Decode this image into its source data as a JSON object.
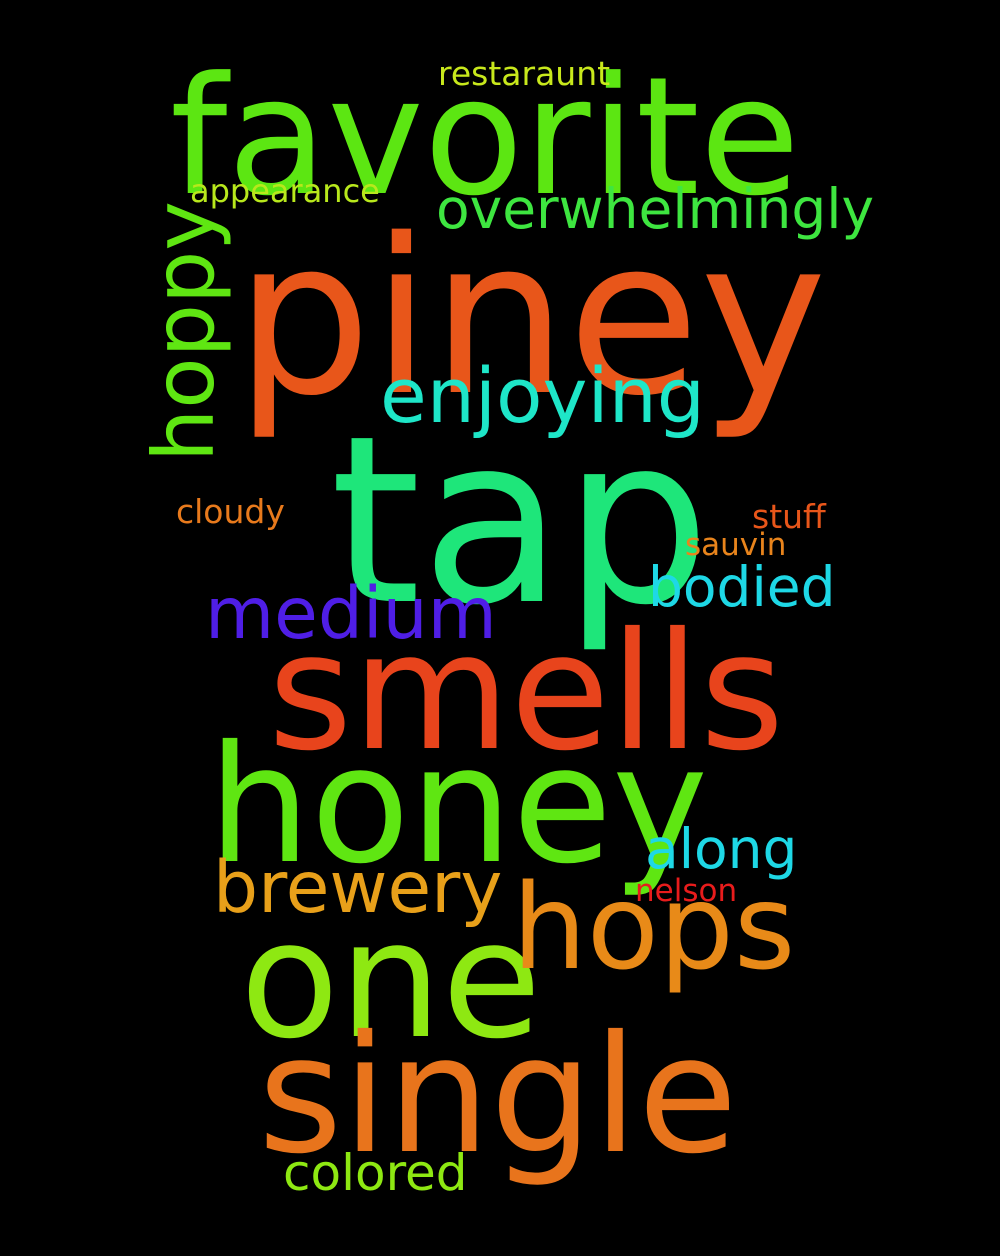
{
  "background_color": "#000000",
  "words": {
    "favorite": {
      "text": "favorite",
      "color": "#5ce612"
    },
    "piney": {
      "text": "piney",
      "color": "#e8561a"
    },
    "tap": {
      "text": "tap",
      "color": "#1ee67a"
    },
    "smells": {
      "text": "smells",
      "color": "#e8441c"
    },
    "honey": {
      "text": "honey",
      "color": "#5fe612"
    },
    "one": {
      "text": "one",
      "color": "#8ee812"
    },
    "single": {
      "text": "single",
      "color": "#e8741c"
    },
    "hops": {
      "text": "hops",
      "color": "#e88a18"
    },
    "hoppy": {
      "text": "hoppy",
      "color": "#5fe612"
    },
    "enjoying": {
      "text": "enjoying",
      "color": "#1ee6c8"
    },
    "medium": {
      "text": "medium",
      "color": "#4f1ee6"
    },
    "brewery": {
      "text": "brewery",
      "color": "#e8a01a"
    },
    "overwhelmingly": {
      "text": "overwhelmingly",
      "color": "#3ee640"
    },
    "bodied": {
      "text": "bodied",
      "color": "#1ed8e6"
    },
    "along": {
      "text": "along",
      "color": "#1ed8e6"
    },
    "colored": {
      "text": "colored",
      "color": "#8ee812"
    },
    "restaraunt": {
      "text": "restaraunt",
      "color": "#c8e81c"
    },
    "appearance": {
      "text": "appearance",
      "color": "#b8e81c"
    },
    "cloudy": {
      "text": "cloudy",
      "color": "#e87a1c"
    },
    "stuff": {
      "text": "stuff",
      "color": "#e8561a"
    },
    "sauvin": {
      "text": "sauvin",
      "color": "#e8841c"
    },
    "nelson": {
      "text": "nelson",
      "color": "#e81c1c"
    }
  }
}
